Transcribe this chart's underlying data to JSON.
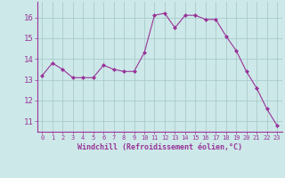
{
  "x": [
    0,
    1,
    2,
    3,
    4,
    5,
    6,
    7,
    8,
    9,
    10,
    11,
    12,
    13,
    14,
    15,
    16,
    17,
    18,
    19,
    20,
    21,
    22,
    23
  ],
  "y": [
    13.2,
    13.8,
    13.5,
    13.1,
    13.1,
    13.1,
    13.7,
    13.5,
    13.4,
    13.4,
    14.3,
    16.1,
    16.2,
    15.5,
    16.1,
    16.1,
    15.9,
    15.9,
    15.1,
    14.4,
    13.4,
    12.6,
    11.6,
    10.8
  ],
  "line_color": "#993399",
  "marker_color": "#993399",
  "bg_color": "#cce8e8",
  "grid_color": "#aacccc",
  "xlabel": "Windchill (Refroidissement éolien,°C)",
  "xlabel_color": "#993399",
  "tick_color": "#993399",
  "spine_color": "#993399",
  "ylim": [
    10.5,
    16.75
  ],
  "yticks": [
    11,
    12,
    13,
    14,
    15,
    16
  ],
  "xlim": [
    -0.5,
    23.5
  ],
  "xticks": [
    0,
    1,
    2,
    3,
    4,
    5,
    6,
    7,
    8,
    9,
    10,
    11,
    12,
    13,
    14,
    15,
    16,
    17,
    18,
    19,
    20,
    21,
    22,
    23
  ]
}
